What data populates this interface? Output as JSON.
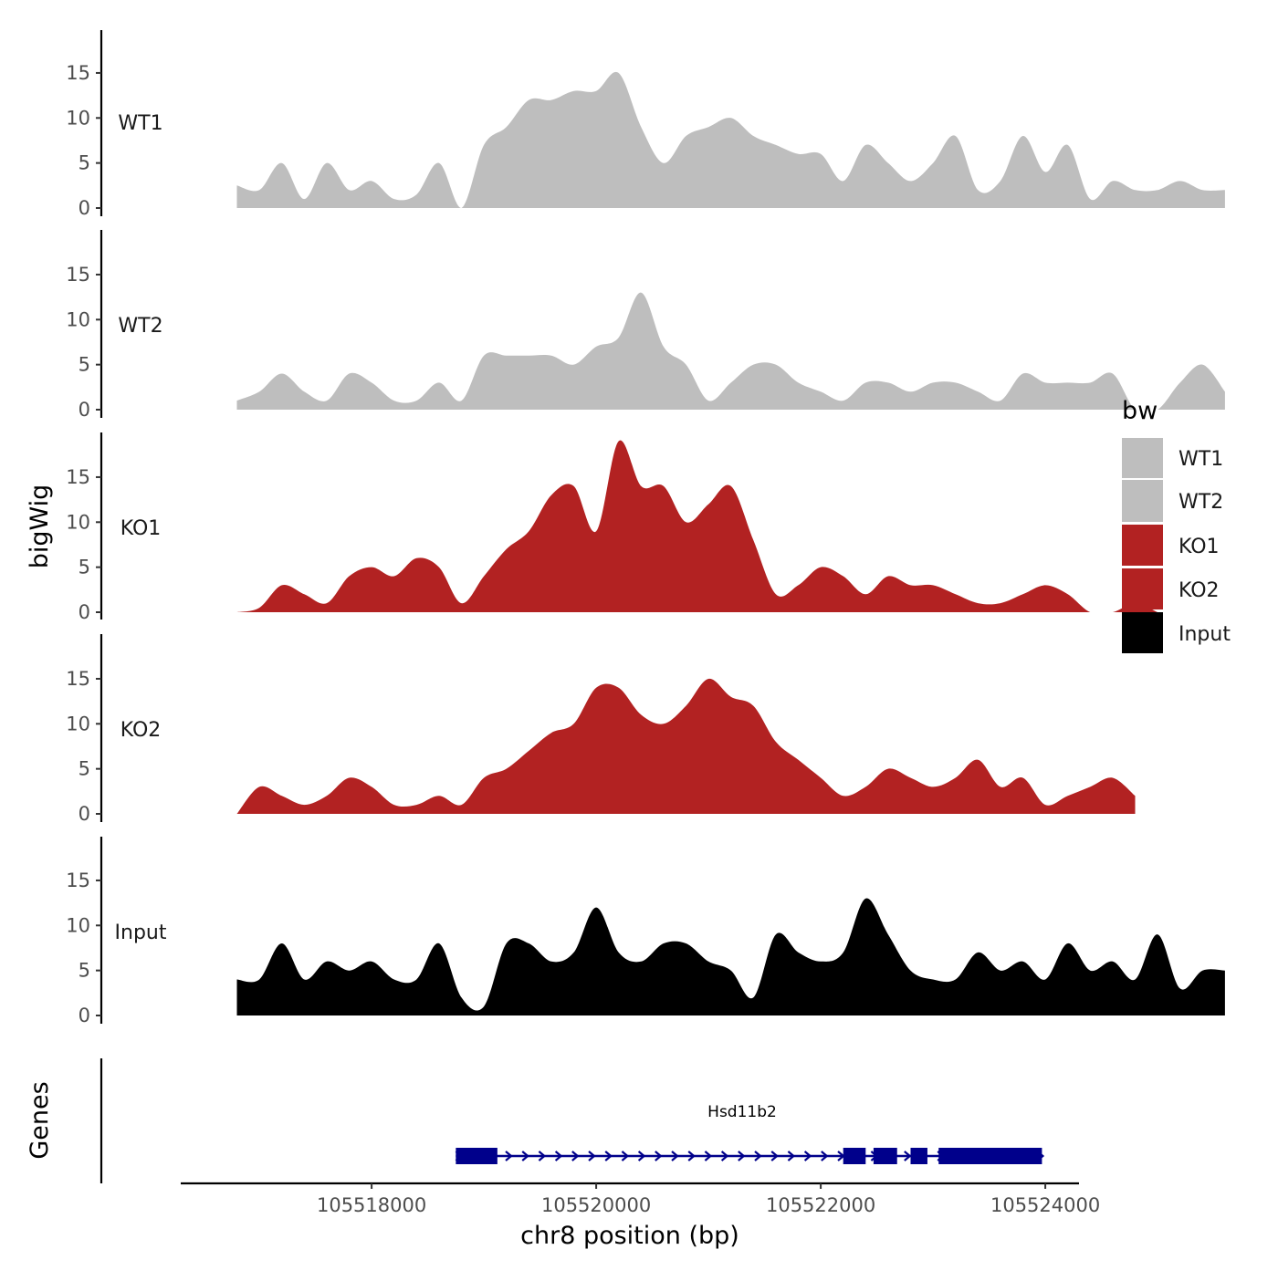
{
  "chart_data": {
    "type": "area",
    "title": "",
    "xlabel": "chr8 position (bp)",
    "ylabel": "bigWig",
    "gene_track_label": "Genes",
    "xlim": [
      105516300,
      105524300
    ],
    "x_ticks": [
      105518000,
      105520000,
      105522000,
      105524000
    ],
    "x_tick_labels": [
      "105518000",
      "105520000",
      "105522000",
      "105524000"
    ],
    "ylim": [
      0,
      20
    ],
    "y_ticks": [
      0,
      5,
      10,
      15
    ],
    "y_tick_labels": [
      "0",
      "5",
      "10",
      "15"
    ],
    "x_start": 105516800,
    "x_step": 200,
    "legend": {
      "title": "bw",
      "position": "right",
      "entries": [
        {
          "label": "WT1",
          "color": "#bebebe"
        },
        {
          "label": "WT2",
          "color": "#bebebe"
        },
        {
          "label": "KO1",
          "color": "#b22222"
        },
        {
          "label": "KO2",
          "color": "#b22222"
        },
        {
          "label": "Input",
          "color": "#000000"
        }
      ]
    },
    "series": [
      {
        "name": "WT1",
        "color": "#bebebe",
        "values": [
          2.5,
          2,
          5,
          1,
          5,
          2,
          3,
          1,
          1.5,
          5,
          0,
          7,
          9,
          12,
          12,
          13,
          13,
          15,
          9,
          5,
          8,
          9,
          10,
          8,
          7,
          6,
          6,
          3,
          7,
          5,
          3,
          5,
          8,
          2,
          3,
          8,
          4,
          7,
          1,
          3,
          2,
          2,
          3,
          2,
          2
        ]
      },
      {
        "name": "WT2",
        "color": "#bebebe",
        "values": [
          1,
          2,
          4,
          2,
          1,
          4,
          3,
          1,
          1,
          3,
          1,
          6,
          6,
          6,
          6,
          5,
          7,
          8,
          13,
          7,
          5,
          1,
          3,
          5,
          5,
          3,
          2,
          1,
          3,
          3,
          2,
          3,
          3,
          2,
          1,
          4,
          3,
          3,
          3,
          4,
          0,
          0,
          3,
          5,
          2
        ]
      },
      {
        "name": "KO1",
        "color": "#b22222",
        "values": [
          0,
          0.5,
          3,
          2,
          1,
          4,
          5,
          4,
          6,
          5,
          1,
          4,
          7,
          9,
          13,
          14,
          9,
          19,
          14,
          14,
          10,
          12,
          14,
          8,
          2,
          3,
          5,
          4,
          2,
          4,
          3,
          3,
          2,
          1,
          1,
          2,
          3,
          2,
          0,
          0,
          1,
          0
        ]
      },
      {
        "name": "KO2",
        "color": "#b22222",
        "values": [
          0,
          3,
          2,
          1,
          2,
          4,
          3,
          1,
          1,
          2,
          1,
          4,
          5,
          7,
          9,
          10,
          14,
          14,
          11,
          10,
          12,
          15,
          13,
          12,
          8,
          6,
          4,
          2,
          3,
          5,
          4,
          3,
          4,
          6,
          3,
          4,
          1,
          2,
          3,
          4,
          2
        ]
      },
      {
        "name": "Input",
        "color": "#000000",
        "values": [
          4,
          4,
          8,
          4,
          6,
          5,
          6,
          4,
          4,
          8,
          2,
          1,
          8,
          8,
          6,
          7,
          12,
          7,
          6,
          8,
          8,
          6,
          5,
          2,
          9,
          7,
          6,
          7,
          13,
          9,
          5,
          4,
          4,
          7,
          5,
          6,
          4,
          8,
          5,
          6,
          4,
          9,
          3,
          5,
          5
        ]
      }
    ],
    "gene": {
      "name": "Hsd11b2",
      "color": "#00008b",
      "strand": "+",
      "start": 105518750,
      "end": 105523970,
      "exons": [
        [
          105518750,
          105519120
        ],
        [
          105522200,
          105522400
        ],
        [
          105522470,
          105522680
        ],
        [
          105522800,
          105522950
        ],
        [
          105523050,
          105523970
        ]
      ]
    }
  }
}
